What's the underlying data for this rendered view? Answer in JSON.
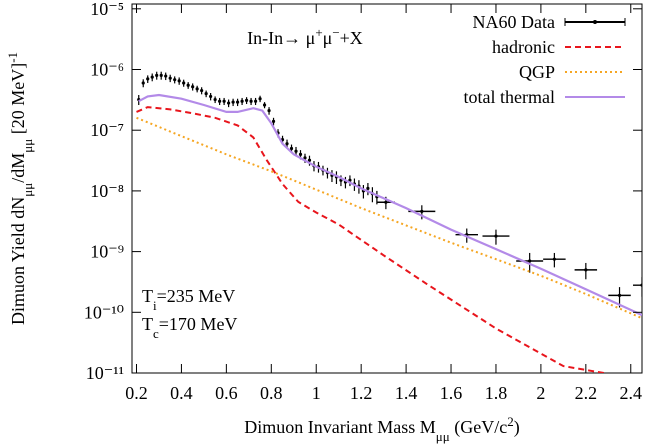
{
  "chart_data": {
    "type": "line",
    "title_parts": [
      {
        "text": "In-In→ μ"
      },
      {
        "text": "+",
        "sup": true
      },
      {
        "text": "μ"
      },
      {
        "text": "−",
        "sup": true
      },
      {
        "text": "+X"
      }
    ],
    "xlabel_parts": [
      {
        "text": "Dimuon Invariant Mass M"
      },
      {
        "text": "μμ",
        "sub": true
      },
      {
        "text": " (GeV/c"
      },
      {
        "text": "2",
        "sup": true
      },
      {
        "text": ")"
      }
    ],
    "ylabel_parts": [
      {
        "text": "Dimuon Yield dN"
      },
      {
        "text": "μμ",
        "sub": true
      },
      {
        "text": "/dM"
      },
      {
        "text": "μμ",
        "sub": true
      },
      {
        "text": " [20 MeV]"
      },
      {
        "text": "-1",
        "sup": true
      }
    ],
    "annotations": [
      {
        "parts": [
          {
            "text": "T"
          },
          {
            "text": "i",
            "sub": true
          },
          {
            "text": "=235 MeV"
          }
        ]
      },
      {
        "parts": [
          {
            "text": "T"
          },
          {
            "text": "c",
            "sub": true
          },
          {
            "text": "=170 MeV"
          }
        ]
      }
    ],
    "xlim": [
      0.18,
      2.45
    ],
    "ylim": [
      1e-11,
      1.2e-05
    ],
    "ylog": true,
    "xticks": [
      0.2,
      0.4,
      0.6,
      0.8,
      1,
      1.2,
      1.4,
      1.6,
      1.8,
      2,
      2.2,
      2.4
    ],
    "yticks": [
      {
        "value": 1e-11,
        "label": "10⁻¹¹"
      },
      {
        "value": 1e-10,
        "label": "10⁻¹⁰"
      },
      {
        "value": 1e-09,
        "label": "10⁻⁹"
      },
      {
        "value": 1e-08,
        "label": "10⁻⁸"
      },
      {
        "value": 1e-07,
        "label": "10⁻⁷"
      },
      {
        "value": 1e-06,
        "label": "10⁻⁶"
      },
      {
        "value": 1e-05,
        "label": "10⁻⁵"
      }
    ],
    "legend": "top-right",
    "series": [
      {
        "name": "NA60 Data",
        "color": "#000000",
        "style": "errorbar",
        "x": [
          0.21,
          0.23,
          0.25,
          0.27,
          0.29,
          0.31,
          0.33,
          0.35,
          0.37,
          0.39,
          0.41,
          0.43,
          0.45,
          0.47,
          0.49,
          0.51,
          0.53,
          0.55,
          0.57,
          0.59,
          0.61,
          0.63,
          0.65,
          0.67,
          0.69,
          0.71,
          0.73,
          0.75,
          0.77,
          0.79,
          0.81,
          0.83,
          0.85,
          0.87,
          0.89,
          0.91,
          0.93,
          0.95,
          0.97,
          0.99,
          1.01,
          1.03,
          1.05,
          1.07,
          1.09,
          1.11,
          1.13,
          1.15,
          1.17,
          1.19,
          1.21,
          1.23,
          1.25,
          1.27,
          1.31,
          1.47,
          1.67,
          1.8,
          1.95,
          2.06,
          2.2,
          2.35,
          2.45
        ],
        "values": [
          3.2e-07,
          6e-07,
          7e-07,
          7.5e-07,
          8e-07,
          8e-07,
          7.8e-07,
          7.2e-07,
          6.8e-07,
          6.5e-07,
          6e-07,
          5.5e-07,
          5.2e-07,
          4.8e-07,
          4.5e-07,
          4e-07,
          3.6e-07,
          3.2e-07,
          3e-07,
          3e-07,
          2.8e-07,
          2.9e-07,
          2.9e-07,
          3e-07,
          3.1e-07,
          3e-07,
          3e-07,
          3.3e-07,
          2.6e-07,
          2.1e-07,
          1.4e-07,
          9e-08,
          7e-08,
          6e-08,
          5e-08,
          4.5e-08,
          4e-08,
          3.5e-08,
          3.2e-08,
          2.6e-08,
          2.5e-08,
          2.2e-08,
          2e-08,
          1.8e-08,
          1.7e-08,
          1.5e-08,
          1.4e-08,
          1.5e-08,
          1.3e-08,
          1.2e-08,
          1e-08,
          1.1e-08,
          9e-09,
          8e-09,
          6.5e-09,
          4.6e-09,
          1.9e-09,
          1.8e-09,
          7e-10,
          7.5e-10,
          5e-10,
          1.9e-10,
          2.8e-10
        ],
        "errors": [
          6e-08,
          9e-08,
          1e-07,
          1.1e-07,
          1.2e-07,
          1.2e-07,
          1.1e-07,
          1e-07,
          9e-08,
          9e-08,
          8e-08,
          7e-08,
          7e-08,
          6e-08,
          6e-08,
          5e-08,
          5e-08,
          4e-08,
          4e-08,
          4e-08,
          4e-08,
          4e-08,
          4e-08,
          4e-08,
          4e-08,
          4e-08,
          4e-08,
          4e-08,
          3e-08,
          3e-08,
          2e-08,
          1.4e-08,
          1.1e-08,
          1e-08,
          8e-09,
          8e-09,
          7e-09,
          6e-09,
          6e-09,
          5e-09,
          5e-09,
          4e-09,
          4e-09,
          4e-09,
          4e-09,
          3e-09,
          3e-09,
          3e-09,
          3e-09,
          3e-09,
          2.5e-09,
          2.5e-09,
          2.5e-09,
          2e-09,
          1.5e-09,
          1.2e-09,
          5e-10,
          5e-10,
          2.5e-10,
          2e-10,
          1.5e-10,
          7e-11,
          1e-10
        ],
        "xerrors": [
          null,
          null,
          null,
          null,
          null,
          null,
          null,
          null,
          null,
          null,
          null,
          null,
          null,
          null,
          null,
          null,
          null,
          null,
          null,
          null,
          null,
          null,
          null,
          null,
          null,
          null,
          null,
          null,
          null,
          null,
          null,
          null,
          null,
          null,
          null,
          null,
          null,
          null,
          null,
          null,
          null,
          null,
          null,
          null,
          null,
          null,
          null,
          null,
          null,
          null,
          null,
          null,
          null,
          null,
          0.04,
          0.06,
          0.05,
          0.06,
          0.06,
          0.05,
          0.05,
          0.05,
          0.04
        ]
      },
      {
        "name": "hadronic",
        "color": "#e8151c",
        "style": "dashed",
        "x": [
          0.2,
          0.25,
          0.35,
          0.45,
          0.55,
          0.65,
          0.72,
          0.78,
          0.85,
          0.92,
          1.0,
          1.1,
          1.3,
          1.5,
          1.8,
          2.1,
          2.28
        ],
        "values": [
          2e-07,
          2.4e-07,
          2.2e-07,
          1.9e-07,
          1.6e-07,
          1.2e-07,
          7.6e-08,
          3.2e-08,
          1.3e-08,
          6.6e-09,
          4.4e-09,
          2.8e-09,
          8.7e-10,
          2.8e-10,
          5.4e-11,
          1.3e-11,
          1e-11
        ]
      },
      {
        "name": "QGP",
        "color": "#f5a623",
        "style": "dotted",
        "x": [
          0.2,
          0.4,
          0.6,
          0.8,
          1.0,
          1.2,
          1.4,
          1.6,
          1.8,
          2.0,
          2.2,
          2.45
        ],
        "values": [
          1.6e-07,
          8e-08,
          4e-08,
          2.1e-08,
          1.05e-08,
          5.2e-09,
          2.7e-09,
          1.4e-09,
          7.5e-10,
          4e-10,
          2e-10,
          8e-11
        ]
      },
      {
        "name": "total thermal",
        "color": "#b38ae8",
        "style": "solid",
        "x": [
          0.21,
          0.25,
          0.3,
          0.4,
          0.5,
          0.6,
          0.65,
          0.72,
          0.76,
          0.8,
          0.85,
          0.9,
          1.0,
          1.1,
          1.2,
          1.4,
          1.6,
          1.8,
          2.0,
          2.2,
          2.45
        ],
        "values": [
          3e-07,
          3.6e-07,
          3.8e-07,
          3.3e-07,
          2.6e-07,
          2e-07,
          2e-07,
          2.3e-07,
          2.1e-07,
          1.3e-07,
          6e-08,
          4e-08,
          2.5e-08,
          1.7e-08,
          1.1e-08,
          5.2e-09,
          2.3e-09,
          1.1e-09,
          5.2e-10,
          2.4e-10,
          9e-11
        ]
      }
    ]
  }
}
